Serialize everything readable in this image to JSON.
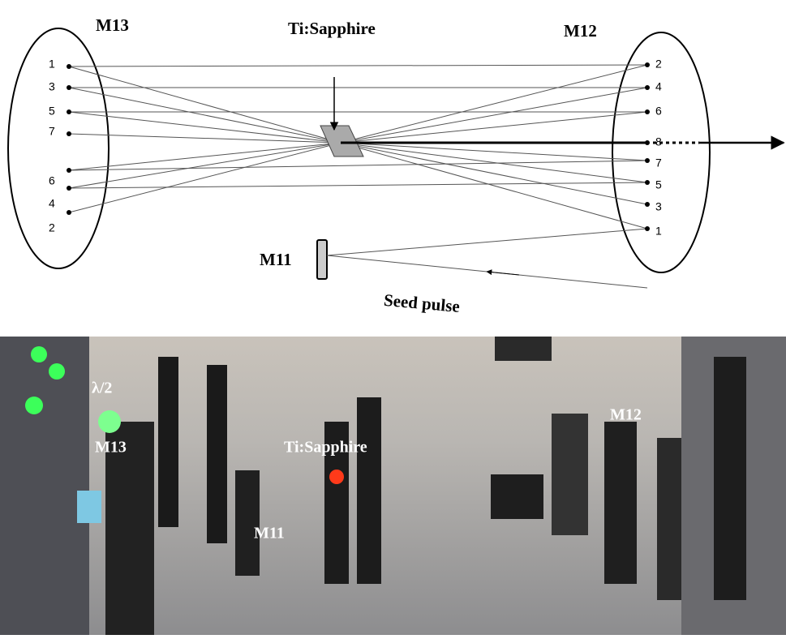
{
  "diagram": {
    "labels": {
      "m13": "M13",
      "crystal": "Ti:Sapphire",
      "m12": "M12",
      "m11": "M11",
      "seed": "Seed pulse"
    },
    "left_points": [
      "1",
      "3",
      "5",
      "7",
      "6",
      "4",
      "2"
    ],
    "right_points": [
      "2",
      "4",
      "6",
      "8",
      "7",
      "5",
      "3",
      "1"
    ]
  },
  "photo": {
    "labels": {
      "half_wave": "λ/2",
      "m13": "M13",
      "crystal": "Ti:Sapphire",
      "m12": "M12",
      "m11": "M11"
    }
  }
}
